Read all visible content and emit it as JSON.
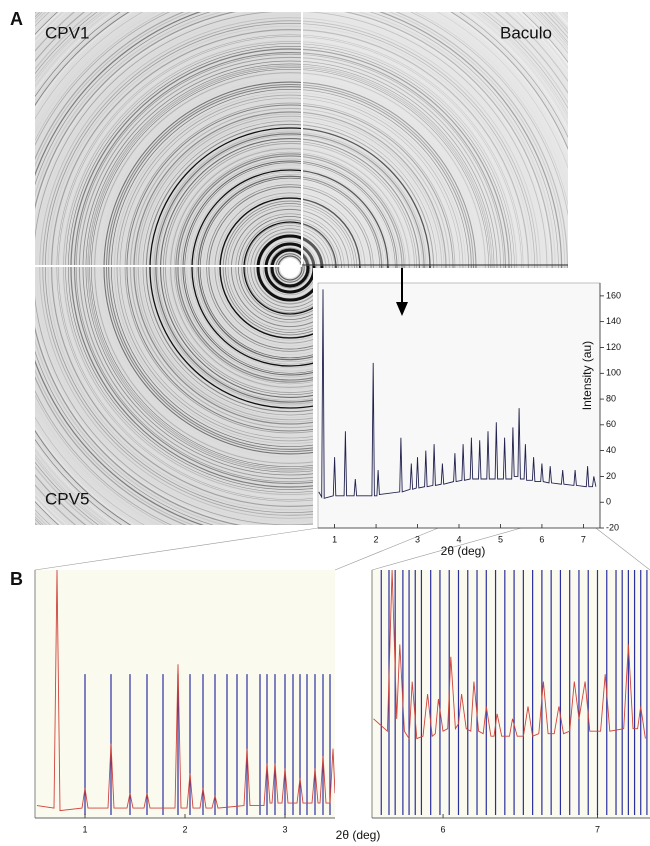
{
  "figure": {
    "panel_a": "A",
    "panel_b": "B",
    "quadrants": [
      "CPV1",
      "Baculo",
      "CPV5"
    ]
  },
  "chart_data": [
    {
      "type": "line",
      "ylabel": "Intensity (au)",
      "xlabel": "2θ (deg)",
      "color": "#22224f",
      "xlim": [
        0.6,
        7.4
      ],
      "ylim": [
        -20,
        170
      ],
      "xticks": [
        1,
        2,
        3,
        4,
        5,
        6,
        7
      ],
      "yticks": [
        -20,
        0,
        20,
        40,
        60,
        80,
        100,
        120,
        140,
        160
      ],
      "x": [
        0.62,
        0.69,
        0.72,
        0.75,
        0.97,
        1.0,
        1.03,
        1.23,
        1.26,
        1.29,
        1.47,
        1.5,
        1.53,
        1.9,
        1.93,
        1.96,
        2.02,
        2.05,
        2.08,
        2.57,
        2.6,
        2.63,
        2.82,
        2.85,
        2.88,
        2.97,
        3.0,
        3.03,
        3.17,
        3.2,
        3.23,
        3.37,
        3.4,
        3.43,
        3.57,
        3.6,
        3.63,
        3.87,
        3.9,
        3.93,
        4.07,
        4.1,
        4.13,
        4.27,
        4.3,
        4.33,
        4.47,
        4.5,
        4.53,
        4.67,
        4.7,
        4.73,
        4.87,
        4.9,
        4.93,
        5.07,
        5.1,
        5.13,
        5.27,
        5.3,
        5.33,
        5.42,
        5.45,
        5.48,
        5.57,
        5.6,
        5.63,
        5.77,
        5.8,
        5.83,
        5.97,
        6.0,
        6.03,
        6.17,
        6.2,
        6.23,
        6.47,
        6.5,
        6.53,
        6.77,
        6.8,
        6.83,
        7.07,
        7.1,
        7.13,
        7.22,
        7.25,
        7.3
      ],
      "values": [
        8,
        4,
        165,
        3,
        5,
        35,
        5,
        5,
        55,
        5,
        5,
        18,
        5,
        5,
        108,
        5,
        5,
        25,
        6,
        8,
        50,
        8,
        10,
        30,
        10,
        11,
        35,
        11,
        12,
        40,
        12,
        13,
        45,
        13,
        14,
        30,
        14,
        16,
        38,
        16,
        17,
        45,
        17,
        18,
        50,
        18,
        18,
        48,
        18,
        18,
        55,
        18,
        18,
        62,
        18,
        18,
        50,
        18,
        18,
        58,
        20,
        20,
        73,
        18,
        18,
        45,
        17,
        17,
        35,
        16,
        16,
        30,
        16,
        15,
        28,
        15,
        14,
        25,
        14,
        13,
        25,
        13,
        12,
        28,
        12,
        12,
        20,
        12
      ]
    },
    {
      "type": "line",
      "xlabel": "2θ (deg)",
      "color": "#d0443c",
      "xlim": [
        0.5,
        3.5
      ],
      "ylim": [
        0,
        100
      ],
      "xticks": [
        1,
        2,
        3
      ],
      "x": [
        0.52,
        0.69,
        0.72,
        0.75,
        0.97,
        1.0,
        1.03,
        1.23,
        1.26,
        1.29,
        1.42,
        1.45,
        1.48,
        1.59,
        1.62,
        1.65,
        1.9,
        1.93,
        1.96,
        2.02,
        2.05,
        2.08,
        2.15,
        2.18,
        2.21,
        2.27,
        2.3,
        2.33,
        2.59,
        2.62,
        2.65,
        2.79,
        2.82,
        2.85,
        2.87,
        2.9,
        2.93,
        2.97,
        3.0,
        3.03,
        3.12,
        3.15,
        3.18,
        3.27,
        3.3,
        3.33,
        3.35,
        3.38,
        3.41,
        3.45,
        3.48,
        3.5
      ],
      "values": [
        5,
        4,
        100,
        3,
        4,
        12,
        4,
        4,
        30,
        4,
        4,
        10,
        4,
        4,
        10,
        4,
        4,
        62,
        4,
        4,
        18,
        4,
        4,
        12,
        4,
        4,
        9,
        4,
        5,
        28,
        5,
        5,
        22,
        6,
        6,
        22,
        6,
        6,
        20,
        6,
        6,
        16,
        6,
        6,
        20,
        6,
        6,
        25,
        6,
        6,
        28,
        10
      ],
      "reflections": {
        "color": "#2b2fa0",
        "x": [
          1.0,
          1.26,
          1.45,
          1.62,
          1.78,
          1.93,
          2.05,
          2.18,
          2.3,
          2.42,
          2.52,
          2.62,
          2.75,
          2.82,
          2.9,
          3.0,
          3.08,
          3.15,
          3.22,
          3.3,
          3.38,
          3.45
        ]
      }
    },
    {
      "type": "line",
      "color": "#d0443c",
      "xlim": [
        5.54,
        7.34
      ],
      "ylim": [
        0,
        100
      ],
      "xticks": [
        6,
        7
      ],
      "x": [
        5.55,
        5.64,
        5.67,
        5.7,
        5.72,
        5.75,
        5.78,
        5.8,
        5.83,
        5.87,
        5.9,
        5.93,
        5.95,
        5.97,
        6.0,
        6.03,
        6.05,
        6.08,
        6.1,
        6.12,
        6.15,
        6.18,
        6.2,
        6.23,
        6.26,
        6.28,
        6.31,
        6.33,
        6.35,
        6.38,
        6.43,
        6.45,
        6.48,
        6.52,
        6.55,
        6.58,
        6.62,
        6.65,
        6.68,
        6.72,
        6.75,
        6.78,
        6.82,
        6.85,
        6.88,
        6.92,
        6.95,
        7.02,
        7.05,
        7.08,
        7.17,
        7.2,
        7.23,
        7.26,
        7.28,
        7.31
      ],
      "values": [
        40,
        35,
        100,
        40,
        70,
        35,
        32,
        55,
        32,
        33,
        50,
        33,
        34,
        48,
        35,
        36,
        65,
        36,
        38,
        50,
        36,
        35,
        55,
        35,
        34,
        45,
        33,
        33,
        42,
        33,
        33,
        40,
        33,
        33,
        45,
        33,
        34,
        55,
        34,
        34,
        45,
        34,
        35,
        55,
        40,
        55,
        35,
        35,
        58,
        35,
        36,
        70,
        36,
        36,
        45,
        32
      ],
      "reflections": {
        "color": "#2b2fa0",
        "x": [
          5.6,
          5.65,
          5.69,
          5.74,
          5.78,
          5.82,
          5.86,
          5.92,
          5.98,
          6.04,
          6.1,
          6.16,
          6.22,
          6.28,
          6.34,
          6.4,
          6.46,
          6.52,
          6.58,
          6.64,
          6.7,
          6.76,
          6.82,
          6.88,
          6.94,
          7.0,
          7.06,
          7.12,
          7.16,
          7.2,
          7.24,
          7.28,
          7.32
        ]
      }
    }
  ]
}
